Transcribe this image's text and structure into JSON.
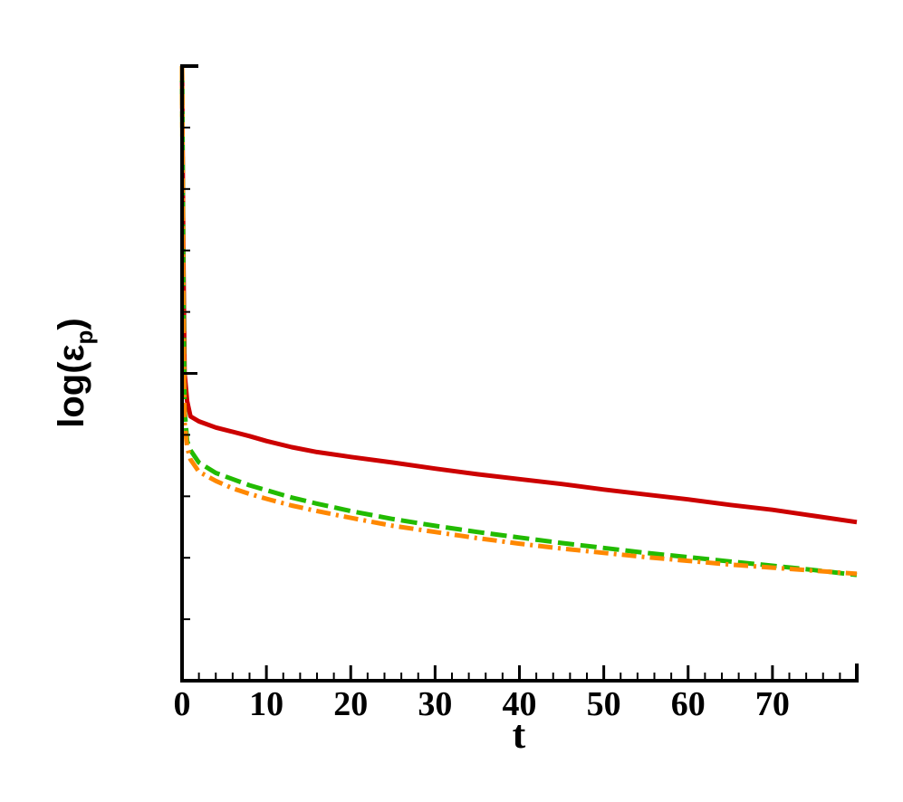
{
  "chart_data": {
    "type": "line",
    "title": "",
    "xlabel": "t",
    "ylabel_main": "log(ε",
    "ylabel_sub": "p",
    "ylabel_close": ")",
    "xlim": [
      0,
      80
    ],
    "ylim": [
      0,
      10
    ],
    "x_ticks": [
      0,
      10,
      20,
      30,
      40,
      50,
      60,
      70
    ],
    "x_tick_labels": [
      "0",
      "10",
      "20",
      "30",
      "40",
      "50",
      "60",
      "70"
    ],
    "y_ticks": [
      0,
      1,
      2,
      3,
      4,
      5,
      6,
      7,
      8,
      9,
      10
    ],
    "y_tick_labels": [],
    "grid": false,
    "series": [
      {
        "color": "#cc0000",
        "style": "solid",
        "x": [
          0,
          0.15,
          0.3,
          0.6,
          1,
          2,
          4,
          6,
          8,
          10,
          13,
          16,
          20,
          25,
          30,
          35,
          40,
          45,
          50,
          55,
          60,
          65,
          70,
          75,
          80
        ],
        "y": [
          10,
          7,
          5.0,
          4.55,
          4.3,
          4.22,
          4.12,
          4.05,
          3.98,
          3.9,
          3.8,
          3.72,
          3.64,
          3.55,
          3.45,
          3.36,
          3.28,
          3.2,
          3.11,
          3.03,
          2.95,
          2.86,
          2.78,
          2.68,
          2.58
        ]
      },
      {
        "color": "#22bb00",
        "style": "dashed",
        "x": [
          0,
          0.15,
          0.3,
          0.6,
          1,
          2,
          4,
          6,
          8,
          10,
          13,
          16,
          20,
          25,
          30,
          35,
          40,
          45,
          50,
          55,
          60,
          65,
          70,
          75,
          80
        ],
        "y": [
          10,
          6.5,
          4.4,
          3.9,
          3.75,
          3.55,
          3.38,
          3.28,
          3.18,
          3.1,
          2.98,
          2.88,
          2.76,
          2.63,
          2.52,
          2.42,
          2.33,
          2.24,
          2.16,
          2.08,
          2.01,
          1.94,
          1.87,
          1.8,
          1.72
        ]
      },
      {
        "color": "#ff8800",
        "style": "dashdot",
        "x": [
          0,
          0.15,
          0.3,
          0.6,
          1,
          2,
          4,
          6,
          8,
          10,
          13,
          16,
          20,
          25,
          30,
          35,
          40,
          45,
          50,
          55,
          60,
          65,
          70,
          75,
          80
        ],
        "y": [
          10,
          6.0,
          4.2,
          3.8,
          3.6,
          3.4,
          3.25,
          3.13,
          3.04,
          2.96,
          2.85,
          2.76,
          2.65,
          2.52,
          2.42,
          2.32,
          2.23,
          2.15,
          2.08,
          2.01,
          1.95,
          1.89,
          1.84,
          1.79,
          1.74
        ]
      }
    ]
  }
}
